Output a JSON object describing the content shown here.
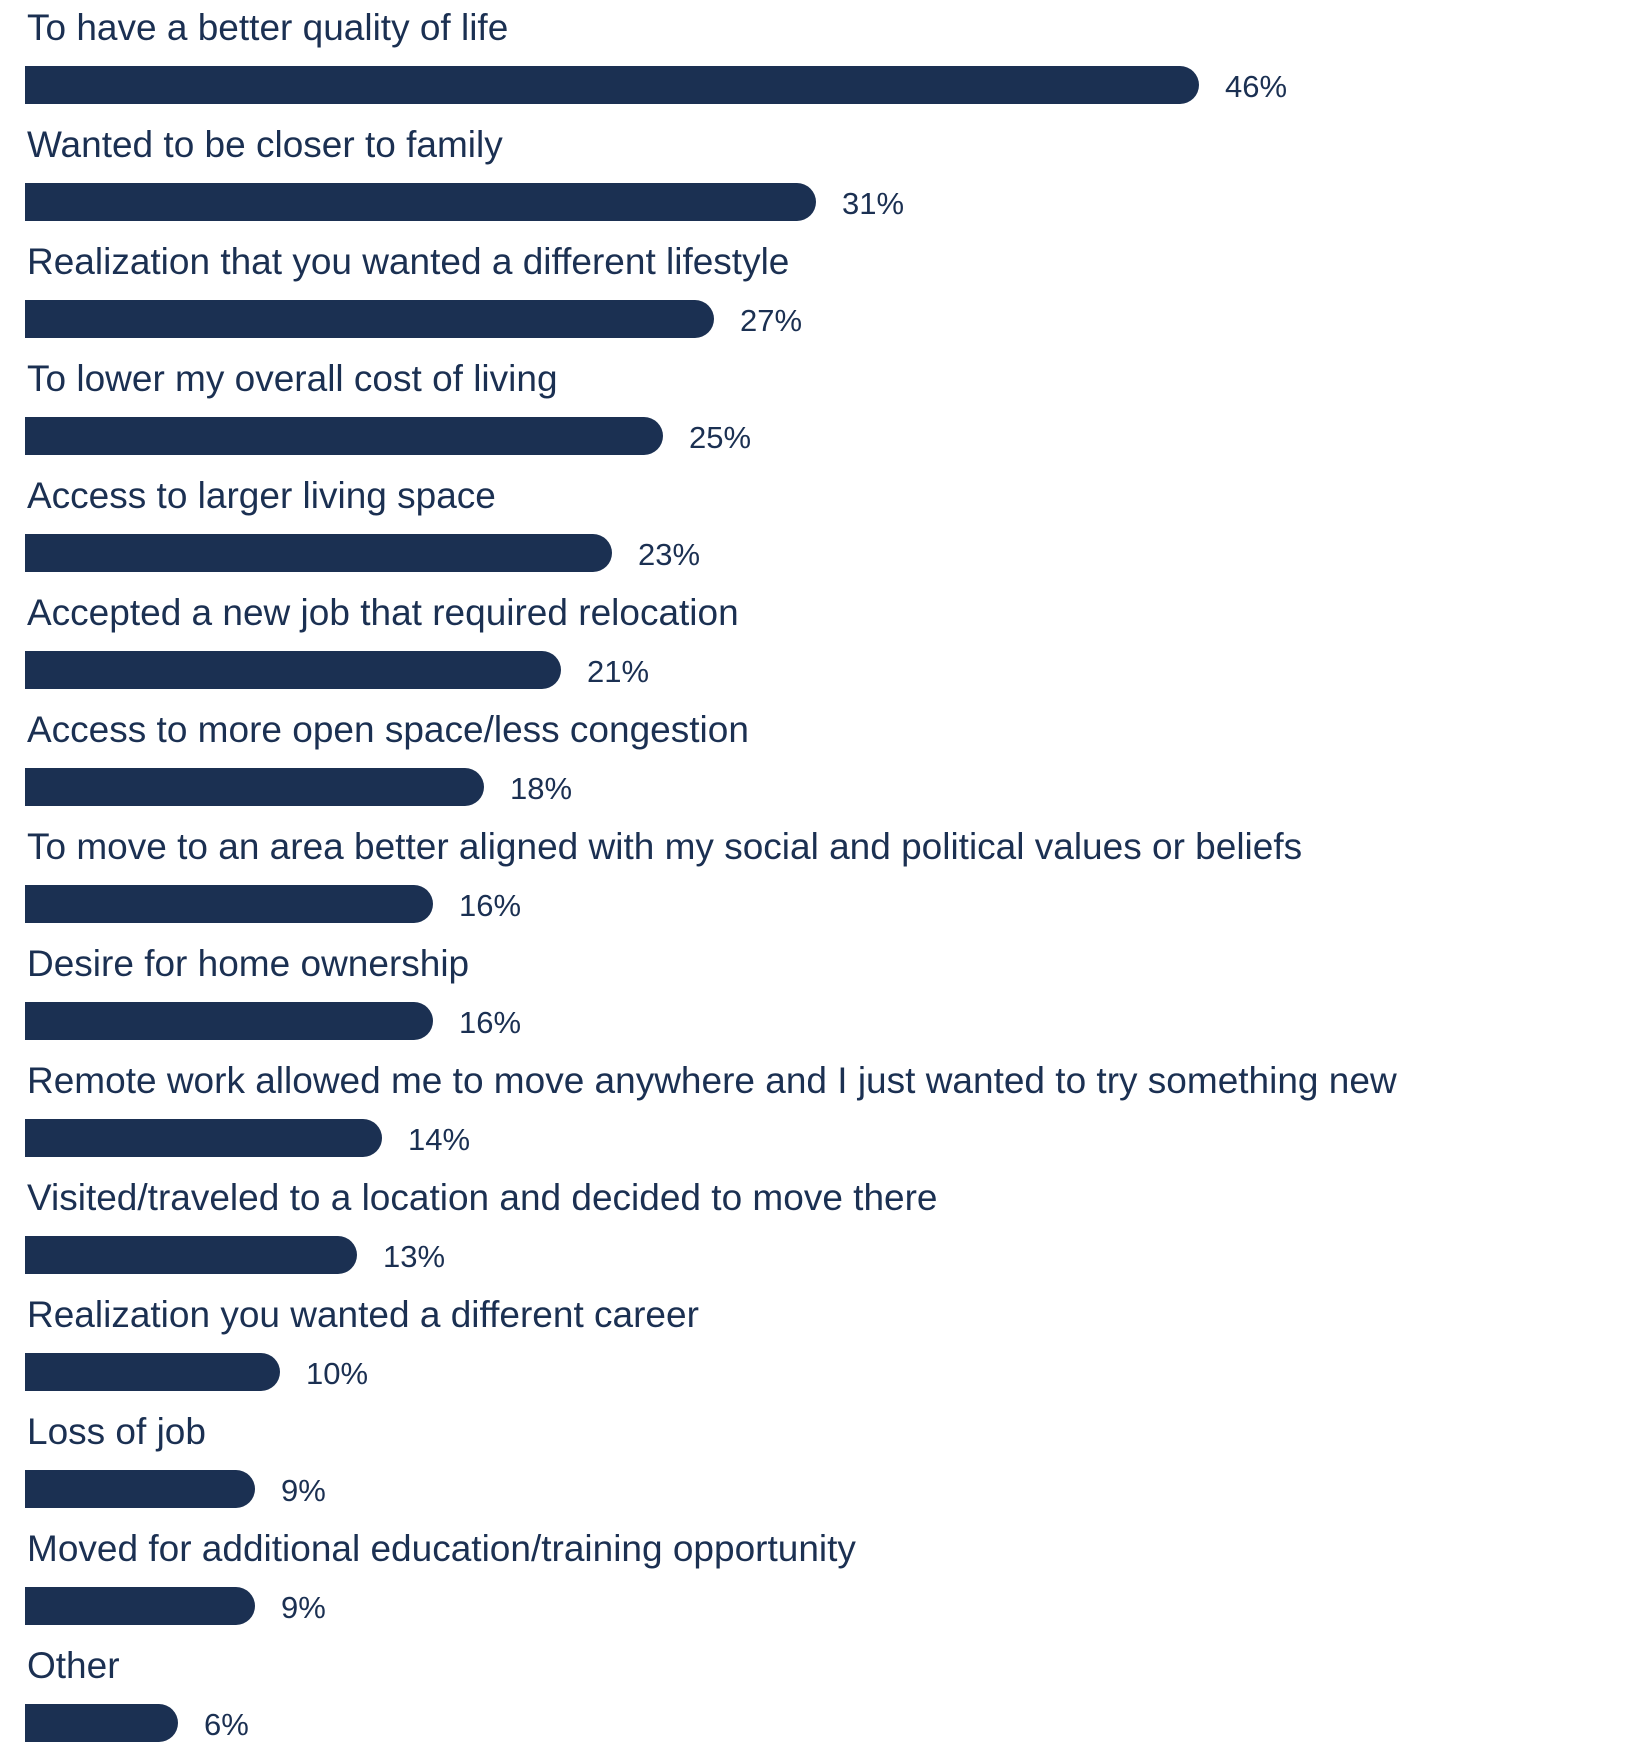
{
  "colors": {
    "bar": "#1b3052",
    "text": "#1b3052",
    "background": "#ffffff"
  },
  "chart_data": {
    "type": "bar",
    "orientation": "horizontal",
    "categories": [
      "To have a better quality of life",
      "Wanted to be closer to family",
      "Realization that you wanted a different lifestyle",
      "To lower my overall cost of living",
      "Access to larger living space",
      "Accepted a new job that required relocation",
      "Access to more open space/less congestion",
      "To move to an area better aligned with my social and political values or beliefs",
      "Desire for home ownership",
      "Remote work allowed me to move anywhere and I just wanted to try something new",
      "Visited/traveled to a location and decided to move there",
      "Realization you wanted a different career",
      "Loss of job",
      "Moved for additional education/training opportunity",
      "Other"
    ],
    "values": [
      46,
      31,
      27,
      25,
      23,
      21,
      18,
      16,
      16,
      14,
      13,
      10,
      9,
      9,
      6
    ],
    "value_labels": [
      "46%",
      "31%",
      "27%",
      "25%",
      "23%",
      "21%",
      "18%",
      "16%",
      "16%",
      "14%",
      "13%",
      "10%",
      "9%",
      "9%",
      "6%"
    ],
    "unit": "%",
    "title": "",
    "xlabel": "",
    "ylabel": "",
    "xlim": [
      0,
      46
    ],
    "grid": false,
    "legend": "none"
  }
}
